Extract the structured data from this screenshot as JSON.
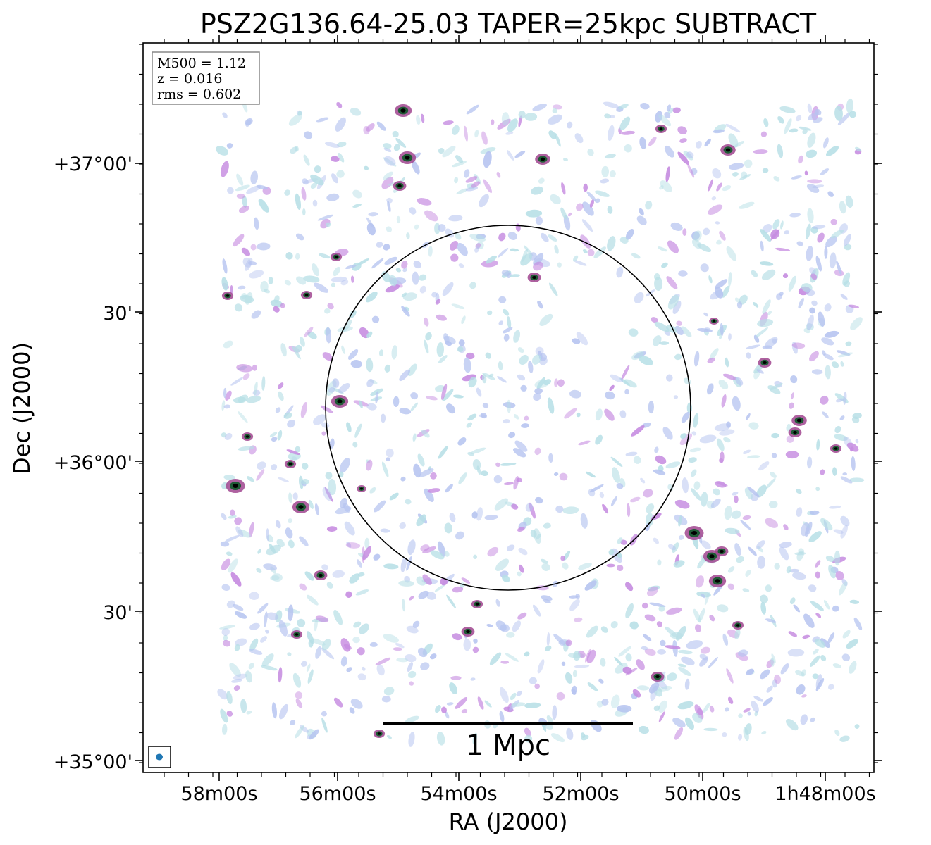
{
  "figure": {
    "title": "PSZ2G136.64-25.03 TAPER=25kpc SUBTRACT",
    "xlabel": "RA (J2000)",
    "ylabel": "Dec (J2000)"
  },
  "info_box": {
    "lines": [
      "M500 = 1.12",
      "z = 0.016",
      "rms = 0.602"
    ]
  },
  "axes": {
    "x_ticks": [
      "58m00s",
      "56m00s",
      "54m00s",
      "52m00s",
      "50m00s",
      "1h48m00s"
    ],
    "y_ticks": [
      "+37°00'",
      "30'",
      "+36°00'",
      "30'",
      "+35°00'"
    ]
  },
  "scale_bar": {
    "label": "1 Mpc"
  },
  "colors": {
    "frame": "#000000",
    "circle": "#000000",
    "beam": "#1f77b4",
    "noise_light": "#b7dfe6",
    "noise_mid": "#b6c4f0",
    "noise_strong": "#c58ae0",
    "source_core": "#1f5a35",
    "source_rim": "#a0458f"
  }
}
